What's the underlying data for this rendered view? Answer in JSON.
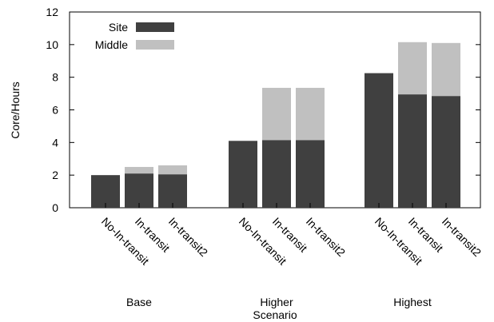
{
  "chart_data": {
    "type": "bar",
    "stacked": true,
    "ylabel": "Core/Hours",
    "xlabel": "Scenario",
    "ylim": [
      0,
      12
    ],
    "yticks": [
      0,
      2,
      4,
      6,
      8,
      10,
      12
    ],
    "grid": false,
    "legend_position": "top-left",
    "groups": [
      {
        "label": "Base",
        "categories": [
          "No-In-transit",
          "In-transit",
          "In-transit2"
        ]
      },
      {
        "label": "Higher",
        "categories": [
          "No-In-transit",
          "In-transit",
          "In-transit2"
        ]
      },
      {
        "label": "Highest",
        "categories": [
          "No-In-transit",
          "In-transit",
          "In-transit2"
        ]
      }
    ],
    "series": [
      {
        "name": "Site",
        "color": "#404040",
        "values": [
          2.0,
          2.1,
          2.05,
          4.1,
          4.15,
          4.15,
          8.25,
          6.95,
          6.85
        ]
      },
      {
        "name": "Middle",
        "color": "#c0c0c0",
        "values": [
          0.0,
          0.4,
          0.55,
          0.0,
          3.2,
          3.2,
          0.0,
          3.2,
          3.25
        ]
      }
    ]
  }
}
